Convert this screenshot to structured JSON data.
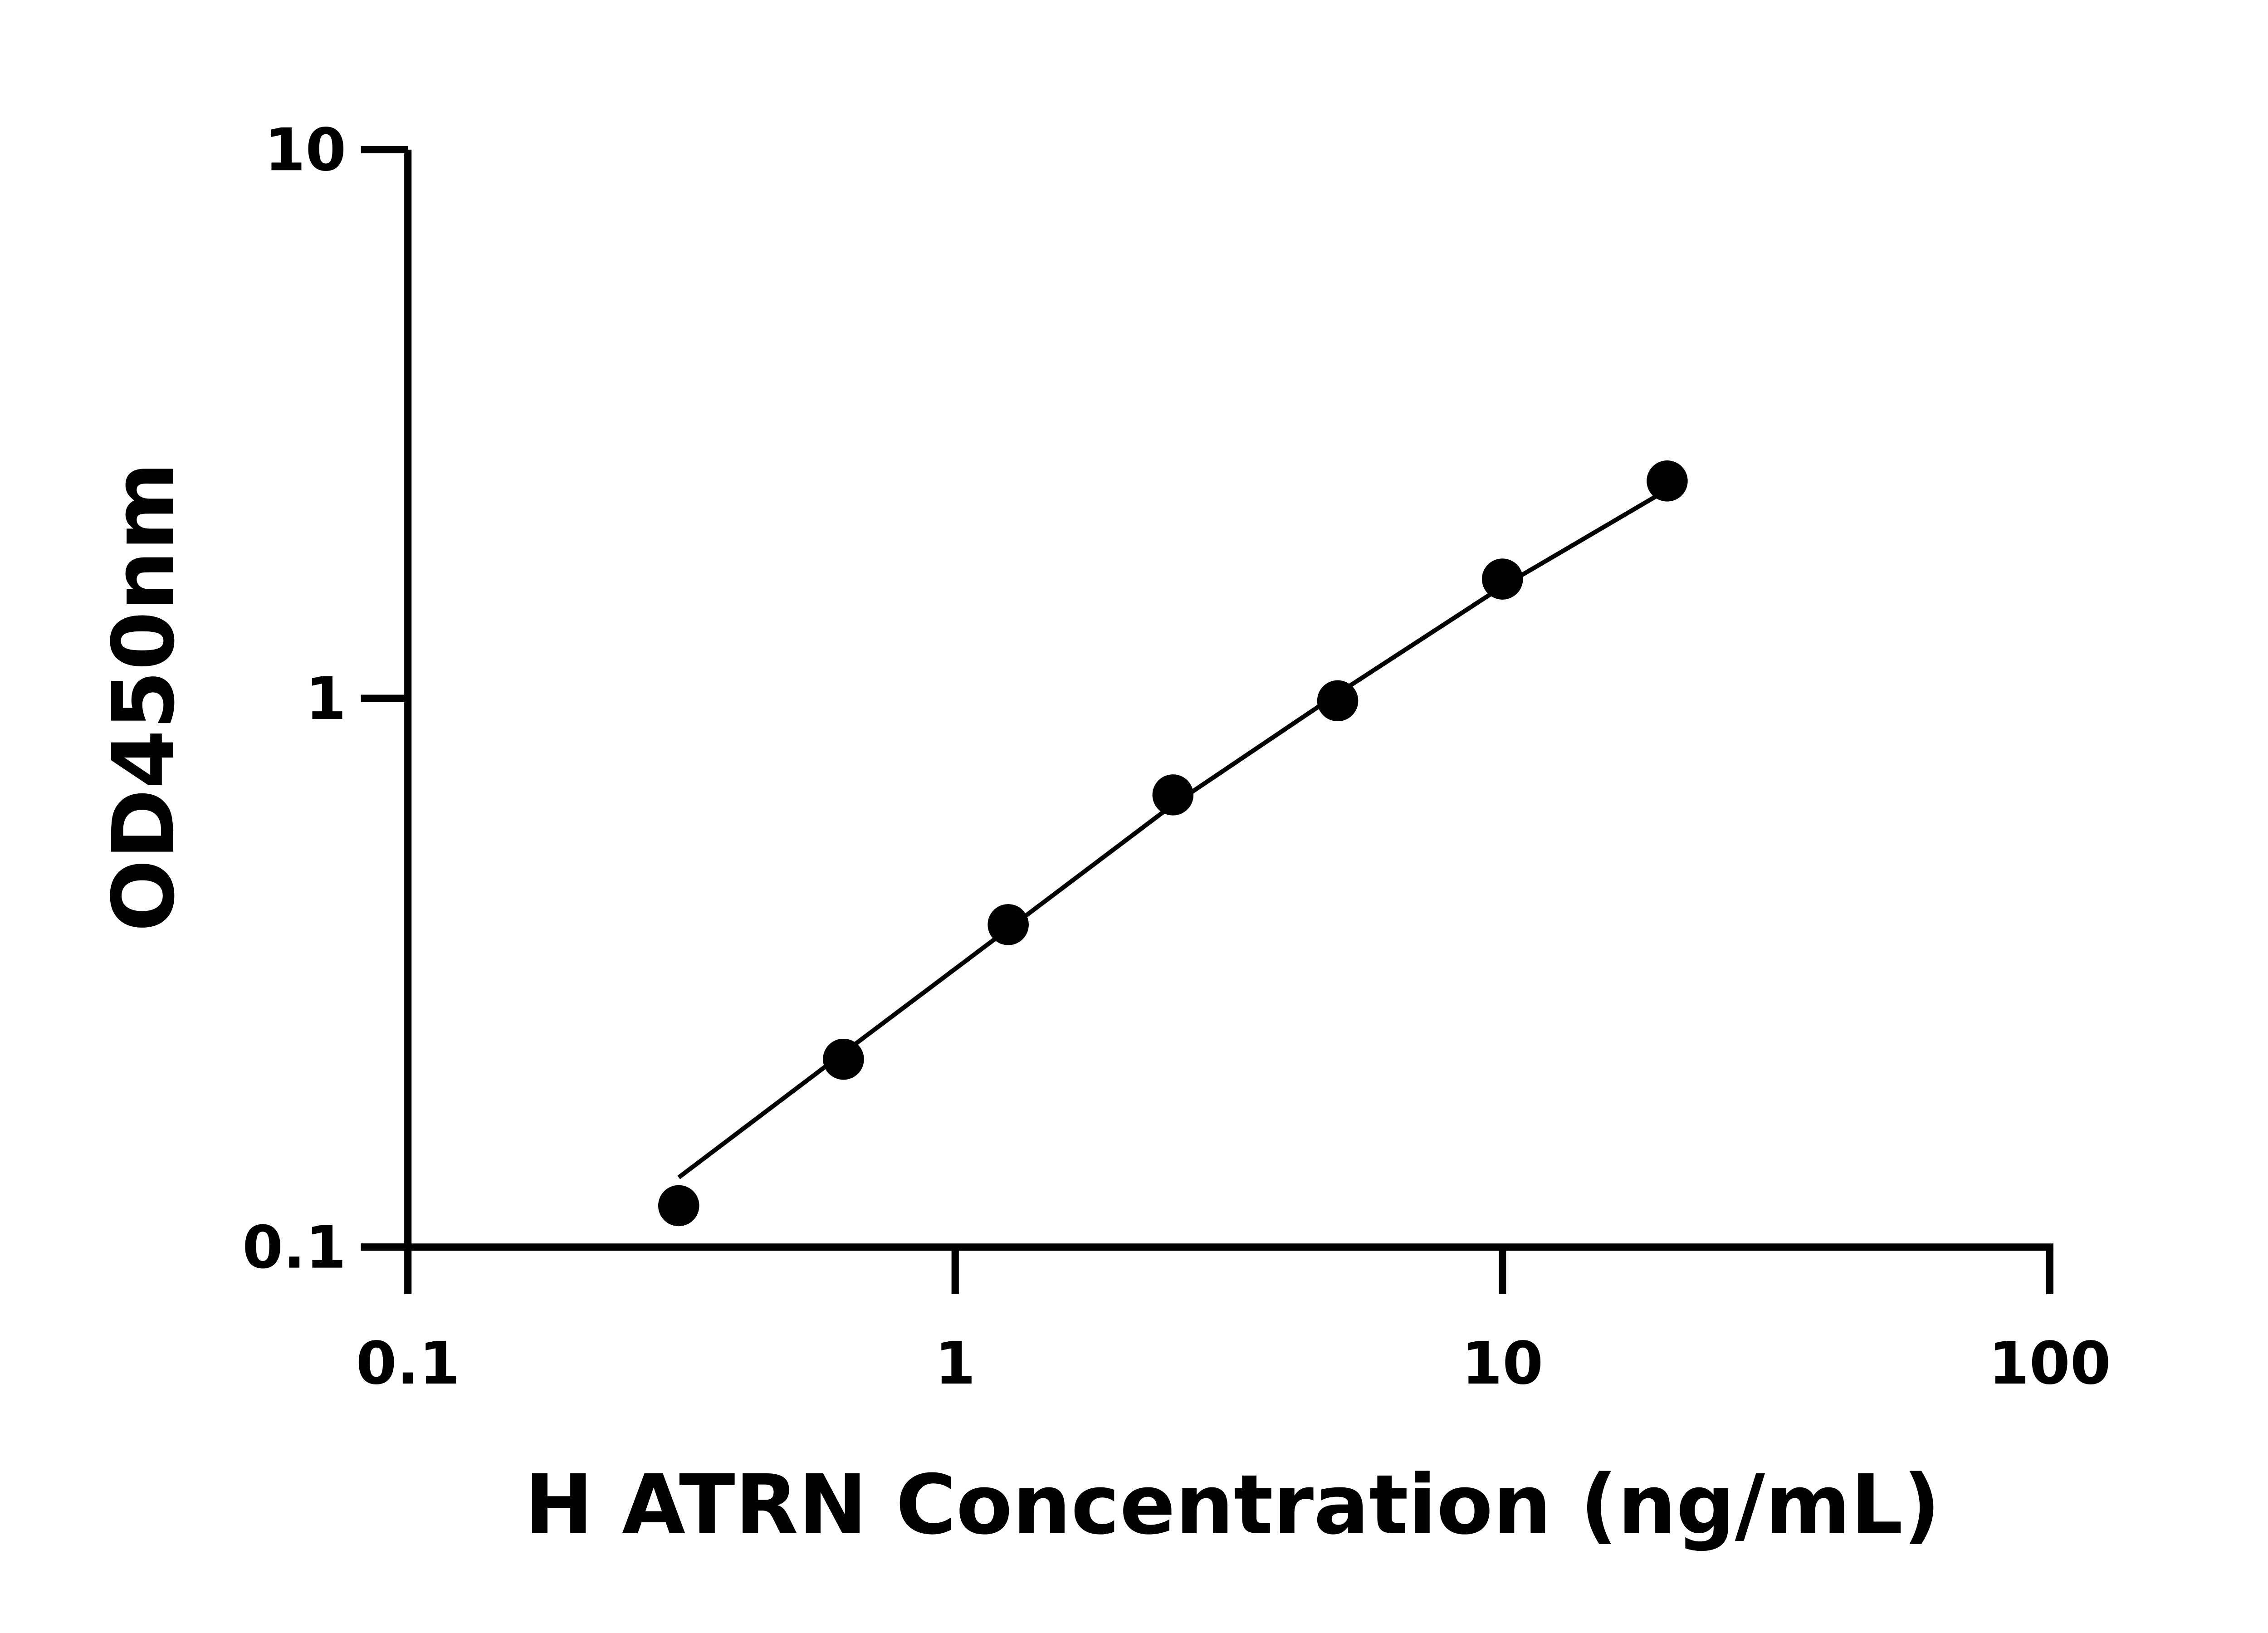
{
  "chart_data": {
    "type": "scatter",
    "title": "",
    "xlabel": "H ATRN Concentration (ng/mL)",
    "ylabel": "OD450nm",
    "xscale": "log",
    "yscale": "log",
    "xlim": [
      0.1,
      100
    ],
    "ylim": [
      0.1,
      10
    ],
    "xticks": [
      "0.1",
      "1",
      "10",
      "100"
    ],
    "yticks": [
      "0.1",
      "1",
      "10"
    ],
    "grid": false,
    "legend": "none",
    "marker_color": "#000000",
    "series": [
      {
        "x": [
          0.3125,
          0.625,
          1.25,
          2.5,
          5,
          10,
          20
        ],
        "y": [
          0.119,
          0.22,
          0.387,
          0.667,
          0.99,
          1.65,
          2.49
        ]
      }
    ],
    "fit_curve": {
      "x": [
        0.3125,
        0.625,
        1.25,
        2.5,
        5,
        10,
        20
      ],
      "y": [
        0.134,
        0.226,
        0.38,
        0.64,
        1.02,
        1.6,
        2.4
      ]
    }
  }
}
